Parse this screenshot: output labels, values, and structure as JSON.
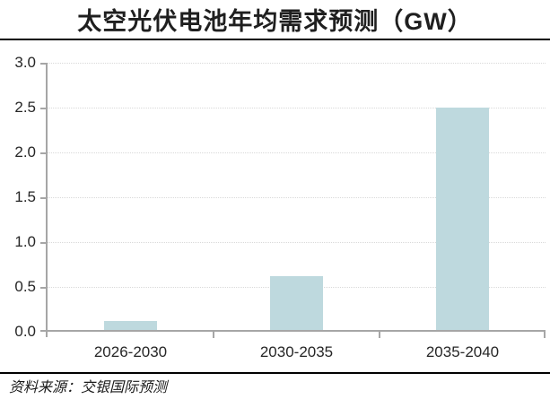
{
  "header": {
    "title": "太空光伏电池年均需求预测（GW）"
  },
  "chart_data": {
    "type": "bar",
    "title": "太空光伏电池年均需求预测（GW）",
    "categories": [
      "2026-2030",
      "2030-2035",
      "2035-2040"
    ],
    "values": [
      0.1,
      0.6,
      2.5
    ],
    "xlabel": "",
    "ylabel": "",
    "unit": "GW",
    "ylim": [
      0,
      3.0
    ],
    "ytick_interval": 0.5,
    "ytick_labels": [
      "3.0",
      "2.5",
      "2.0",
      "1.5",
      "1.0",
      "0.5",
      "0.0"
    ],
    "grid": "horizontal-dotted",
    "legend_position": "none",
    "colors": {
      "bar_fill": "#bed9de",
      "axis_line": "#a6a6a6",
      "gridline": "#d9d9d9",
      "text": "#262626",
      "rule_lines": "#000000"
    }
  },
  "footer": {
    "source_note": "资料来源：交银国际预测"
  }
}
